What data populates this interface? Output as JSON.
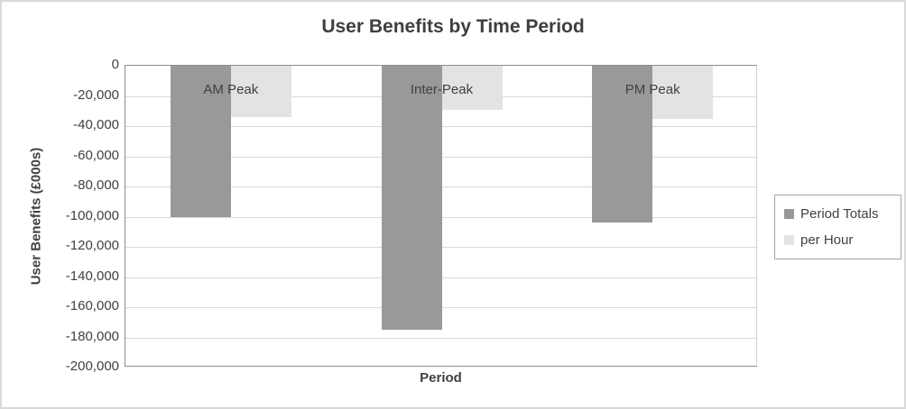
{
  "chart_data": {
    "type": "bar",
    "title": "User Benefits by Time Period",
    "xlabel": "Period",
    "ylabel": "User Benefits (£000s)",
    "categories": [
      "AM Peak",
      "Inter-Peak",
      "PM Peak"
    ],
    "series": [
      {
        "name": "Period Totals",
        "color": "#999999",
        "values": [
          -100000,
          -175000,
          -104000
        ]
      },
      {
        "name": "per Hour",
        "color": "#e3e3e3",
        "values": [
          -34000,
          -29000,
          -35000
        ]
      }
    ],
    "ylim": [
      -200000,
      0
    ],
    "ytick_step": 20000,
    "ytick_labels": [
      "0",
      "-20,000",
      "-40,000",
      "-60,000",
      "-80,000",
      "-100,000",
      "-120,000",
      "-140,000",
      "-160,000",
      "-180,000",
      "-200,000"
    ],
    "grid": true,
    "legend_position": "right",
    "bar_label_position": "inside-top"
  },
  "colors": {
    "gridline": "#d9d9d9",
    "axis_line": "#8c8c8c",
    "figure_border": "#d9d9d9",
    "legend_border": "#a6a6a6",
    "text": "#404040"
  }
}
